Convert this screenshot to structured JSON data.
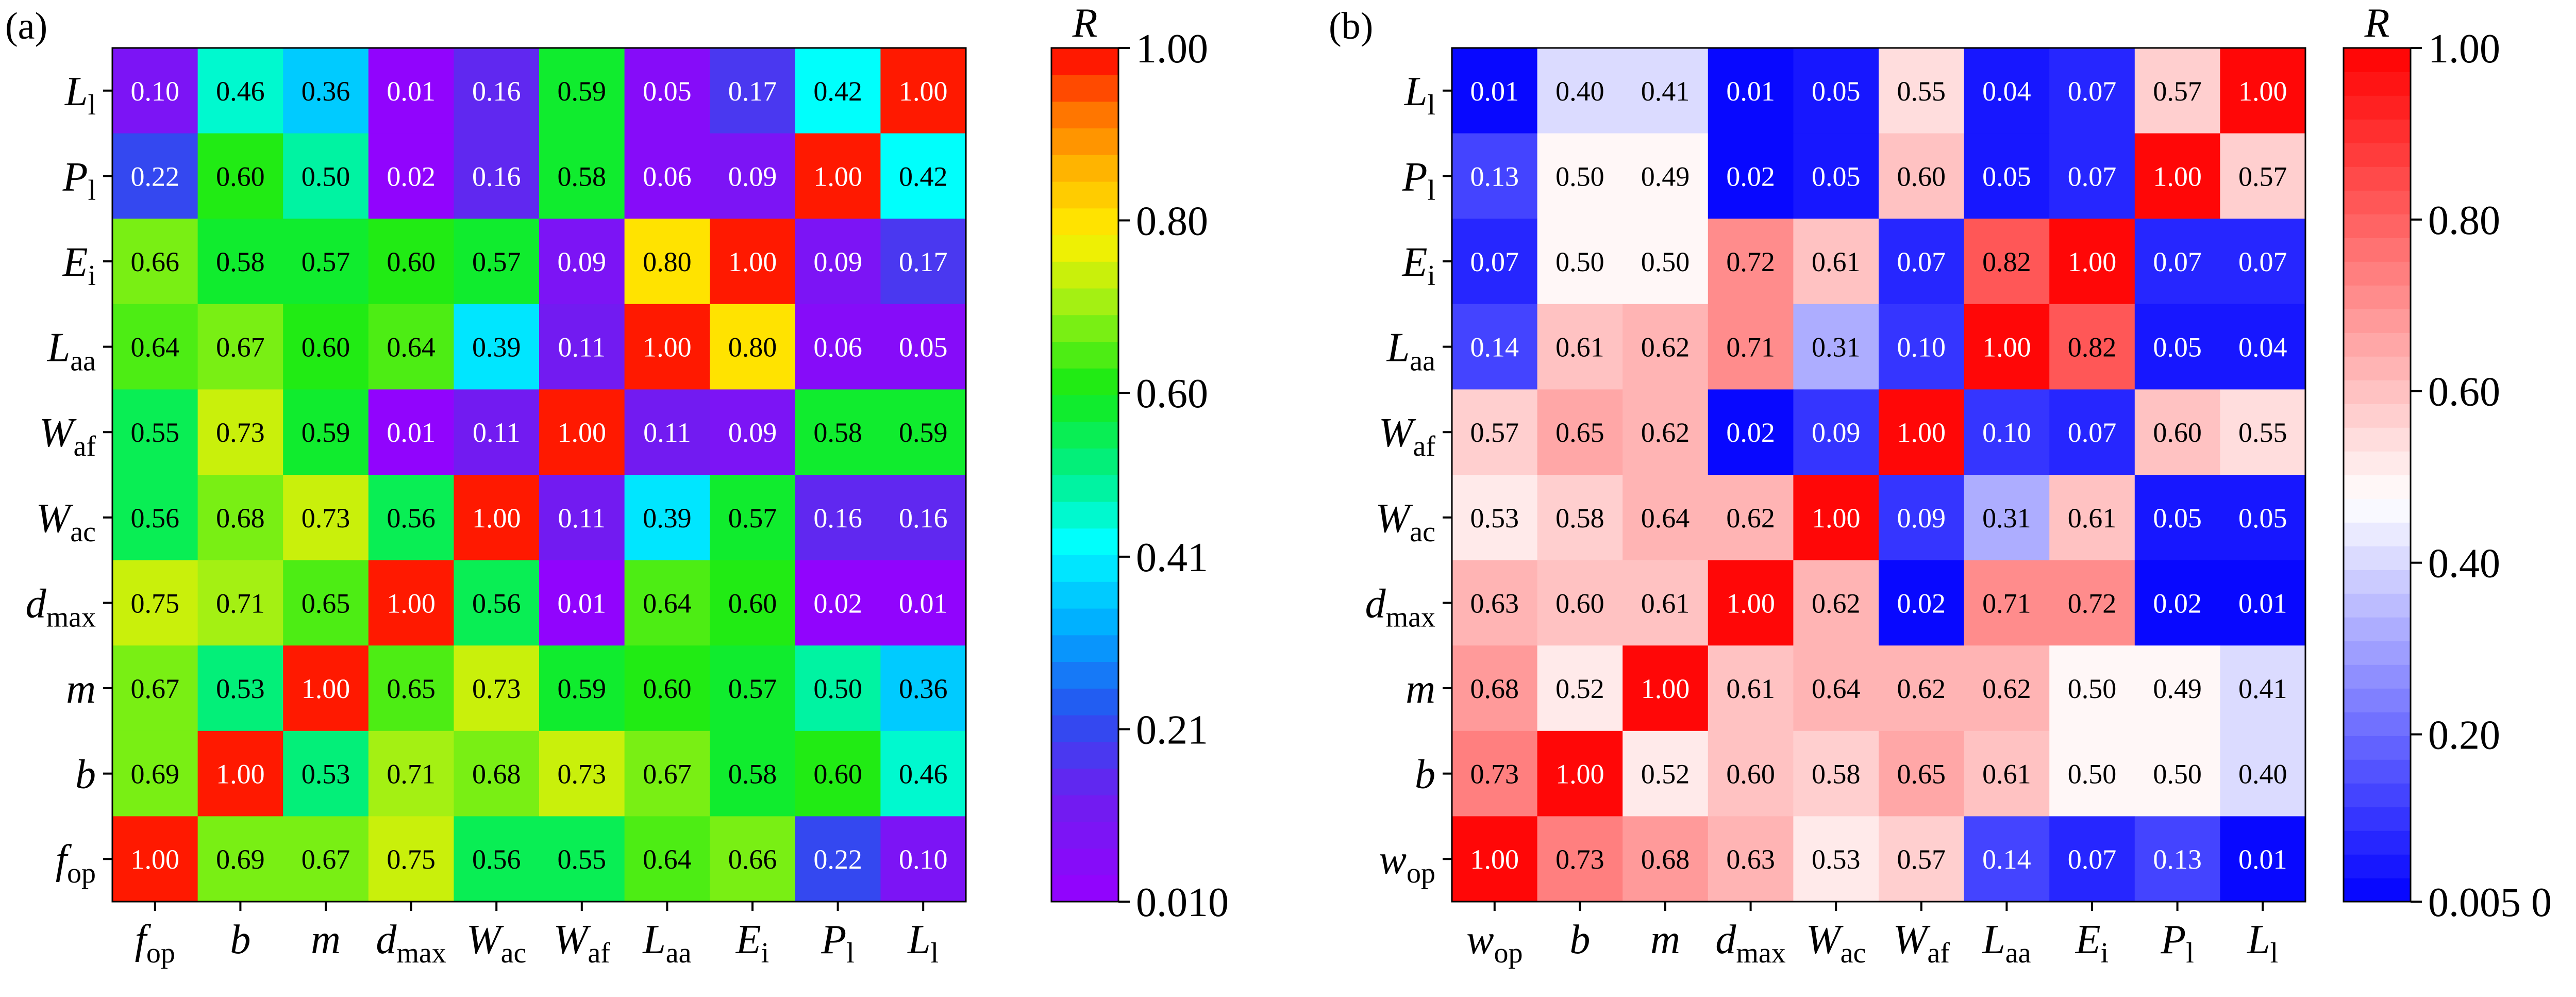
{
  "chart_data": [
    {
      "type": "heatmap",
      "panel_label": "(a)",
      "colorbar": {
        "title": "R",
        "min": 0.01,
        "max": 1.0,
        "ticks": [
          1.0,
          0.8,
          0.6,
          0.41,
          0.21,
          0.01
        ],
        "tick_labels": [
          "1.00",
          "0.80",
          "0.60",
          "0.41",
          "0.21",
          "0.010"
        ],
        "colormap": "rainbow"
      },
      "x_labels": [
        {
          "base": "f",
          "sub": "op"
        },
        {
          "base": "b",
          "sub": ""
        },
        {
          "base": "m",
          "sub": ""
        },
        {
          "base": "d",
          "sub": "max"
        },
        {
          "base": "W",
          "sub": "ac"
        },
        {
          "base": "W",
          "sub": "af"
        },
        {
          "base": "L",
          "sub": "aa"
        },
        {
          "base": "E",
          "sub": "i"
        },
        {
          "base": "P",
          "sub": "l"
        },
        {
          "base": "L",
          "sub": "l"
        }
      ],
      "y_labels": [
        {
          "base": "L",
          "sub": "l"
        },
        {
          "base": "P",
          "sub": "l"
        },
        {
          "base": "E",
          "sub": "i"
        },
        {
          "base": "L",
          "sub": "aa"
        },
        {
          "base": "W",
          "sub": "af"
        },
        {
          "base": "W",
          "sub": "ac"
        },
        {
          "base": "d",
          "sub": "max"
        },
        {
          "base": "m",
          "sub": ""
        },
        {
          "base": "b",
          "sub": ""
        },
        {
          "base": "f",
          "sub": "op"
        }
      ],
      "values": [
        [
          "0.10",
          "0.46",
          "0.36",
          "0.01",
          "0.16",
          "0.59",
          "0.05",
          "0.17",
          "0.42",
          "1.00"
        ],
        [
          "0.22",
          "0.60",
          "0.50",
          "0.02",
          "0.16",
          "0.58",
          "0.06",
          "0.09",
          "1.00",
          "0.42"
        ],
        [
          "0.66",
          "0.58",
          "0.57",
          "0.60",
          "0.57",
          "0.09",
          "0.80",
          "1.00",
          "0.09",
          "0.17"
        ],
        [
          "0.64",
          "0.67",
          "0.60",
          "0.64",
          "0.39",
          "0.11",
          "1.00",
          "0.80",
          "0.06",
          "0.05"
        ],
        [
          "0.55",
          "0.73",
          "0.59",
          "0.01",
          "0.11",
          "1.00",
          "0.11",
          "0.09",
          "0.58",
          "0.59"
        ],
        [
          "0.56",
          "0.68",
          "0.73",
          "0.56",
          "1.00",
          "0.11",
          "0.39",
          "0.57",
          "0.16",
          "0.16"
        ],
        [
          "0.75",
          "0.71",
          "0.65",
          "1.00",
          "0.56",
          "0.01",
          "0.64",
          "0.60",
          "0.02",
          "0.01"
        ],
        [
          "0.67",
          "0.53",
          "1.00",
          "0.65",
          "0.73",
          "0.59",
          "0.60",
          "0.57",
          "0.50",
          "0.36"
        ],
        [
          "0.69",
          "1.00",
          "0.53",
          "0.71",
          "0.68",
          "0.73",
          "0.67",
          "0.58",
          "0.60",
          "0.46"
        ],
        [
          "1.00",
          "0.69",
          "0.67",
          "0.75",
          "0.56",
          "0.55",
          "0.64",
          "0.66",
          "0.22",
          "0.10"
        ]
      ]
    },
    {
      "type": "heatmap",
      "panel_label": "(b)",
      "colorbar": {
        "title": "R",
        "min": 0.005,
        "max": 1.0,
        "ticks": [
          1.0,
          0.8,
          0.6,
          0.4,
          0.2,
          0.005
        ],
        "tick_labels": [
          "1.00",
          "0.80",
          "0.60",
          "0.40",
          "0.20",
          "0.005 0"
        ],
        "colormap": "blue-white-red"
      },
      "x_labels": [
        {
          "base": "w",
          "sub": "op"
        },
        {
          "base": "b",
          "sub": ""
        },
        {
          "base": "m",
          "sub": ""
        },
        {
          "base": "d",
          "sub": "max"
        },
        {
          "base": "W",
          "sub": "ac"
        },
        {
          "base": "W",
          "sub": "af"
        },
        {
          "base": "L",
          "sub": "aa"
        },
        {
          "base": "E",
          "sub": "i"
        },
        {
          "base": "P",
          "sub": "l"
        },
        {
          "base": "L",
          "sub": "l"
        }
      ],
      "y_labels": [
        {
          "base": "L",
          "sub": "l"
        },
        {
          "base": "P",
          "sub": "l"
        },
        {
          "base": "E",
          "sub": "i"
        },
        {
          "base": "L",
          "sub": "aa"
        },
        {
          "base": "W",
          "sub": "af"
        },
        {
          "base": "W",
          "sub": "ac"
        },
        {
          "base": "d",
          "sub": "max"
        },
        {
          "base": "m",
          "sub": ""
        },
        {
          "base": "b",
          "sub": ""
        },
        {
          "base": "w",
          "sub": "op"
        }
      ],
      "values": [
        [
          "0.01",
          "0.40",
          "0.41",
          "0.01",
          "0.05",
          "0.55",
          "0.04",
          "0.07",
          "0.57",
          "1.00"
        ],
        [
          "0.13",
          "0.50",
          "0.49",
          "0.02",
          "0.05",
          "0.60",
          "0.05",
          "0.07",
          "1.00",
          "0.57"
        ],
        [
          "0.07",
          "0.50",
          "0.50",
          "0.72",
          "0.61",
          "0.07",
          "0.82",
          "1.00",
          "0.07",
          "0.07"
        ],
        [
          "0.14",
          "0.61",
          "0.62",
          "0.71",
          "0.31",
          "0.10",
          "1.00",
          "0.82",
          "0.05",
          "0.04"
        ],
        [
          "0.57",
          "0.65",
          "0.62",
          "0.02",
          "0.09",
          "1.00",
          "0.10",
          "0.07",
          "0.60",
          "0.55"
        ],
        [
          "0.53",
          "0.58",
          "0.64",
          "0.62",
          "1.00",
          "0.09",
          "0.31",
          "0.61",
          "0.05",
          "0.05"
        ],
        [
          "0.63",
          "0.60",
          "0.61",
          "1.00",
          "0.62",
          "0.02",
          "0.71",
          "0.72",
          "0.02",
          "0.01"
        ],
        [
          "0.68",
          "0.52",
          "1.00",
          "0.61",
          "0.64",
          "0.62",
          "0.62",
          "0.50",
          "0.49",
          "0.41"
        ],
        [
          "0.73",
          "1.00",
          "0.52",
          "0.60",
          "0.58",
          "0.65",
          "0.61",
          "0.50",
          "0.50",
          "0.40"
        ],
        [
          "1.00",
          "0.73",
          "0.68",
          "0.63",
          "0.53",
          "0.57",
          "0.14",
          "0.07",
          "0.13",
          "0.01"
        ]
      ]
    }
  ]
}
